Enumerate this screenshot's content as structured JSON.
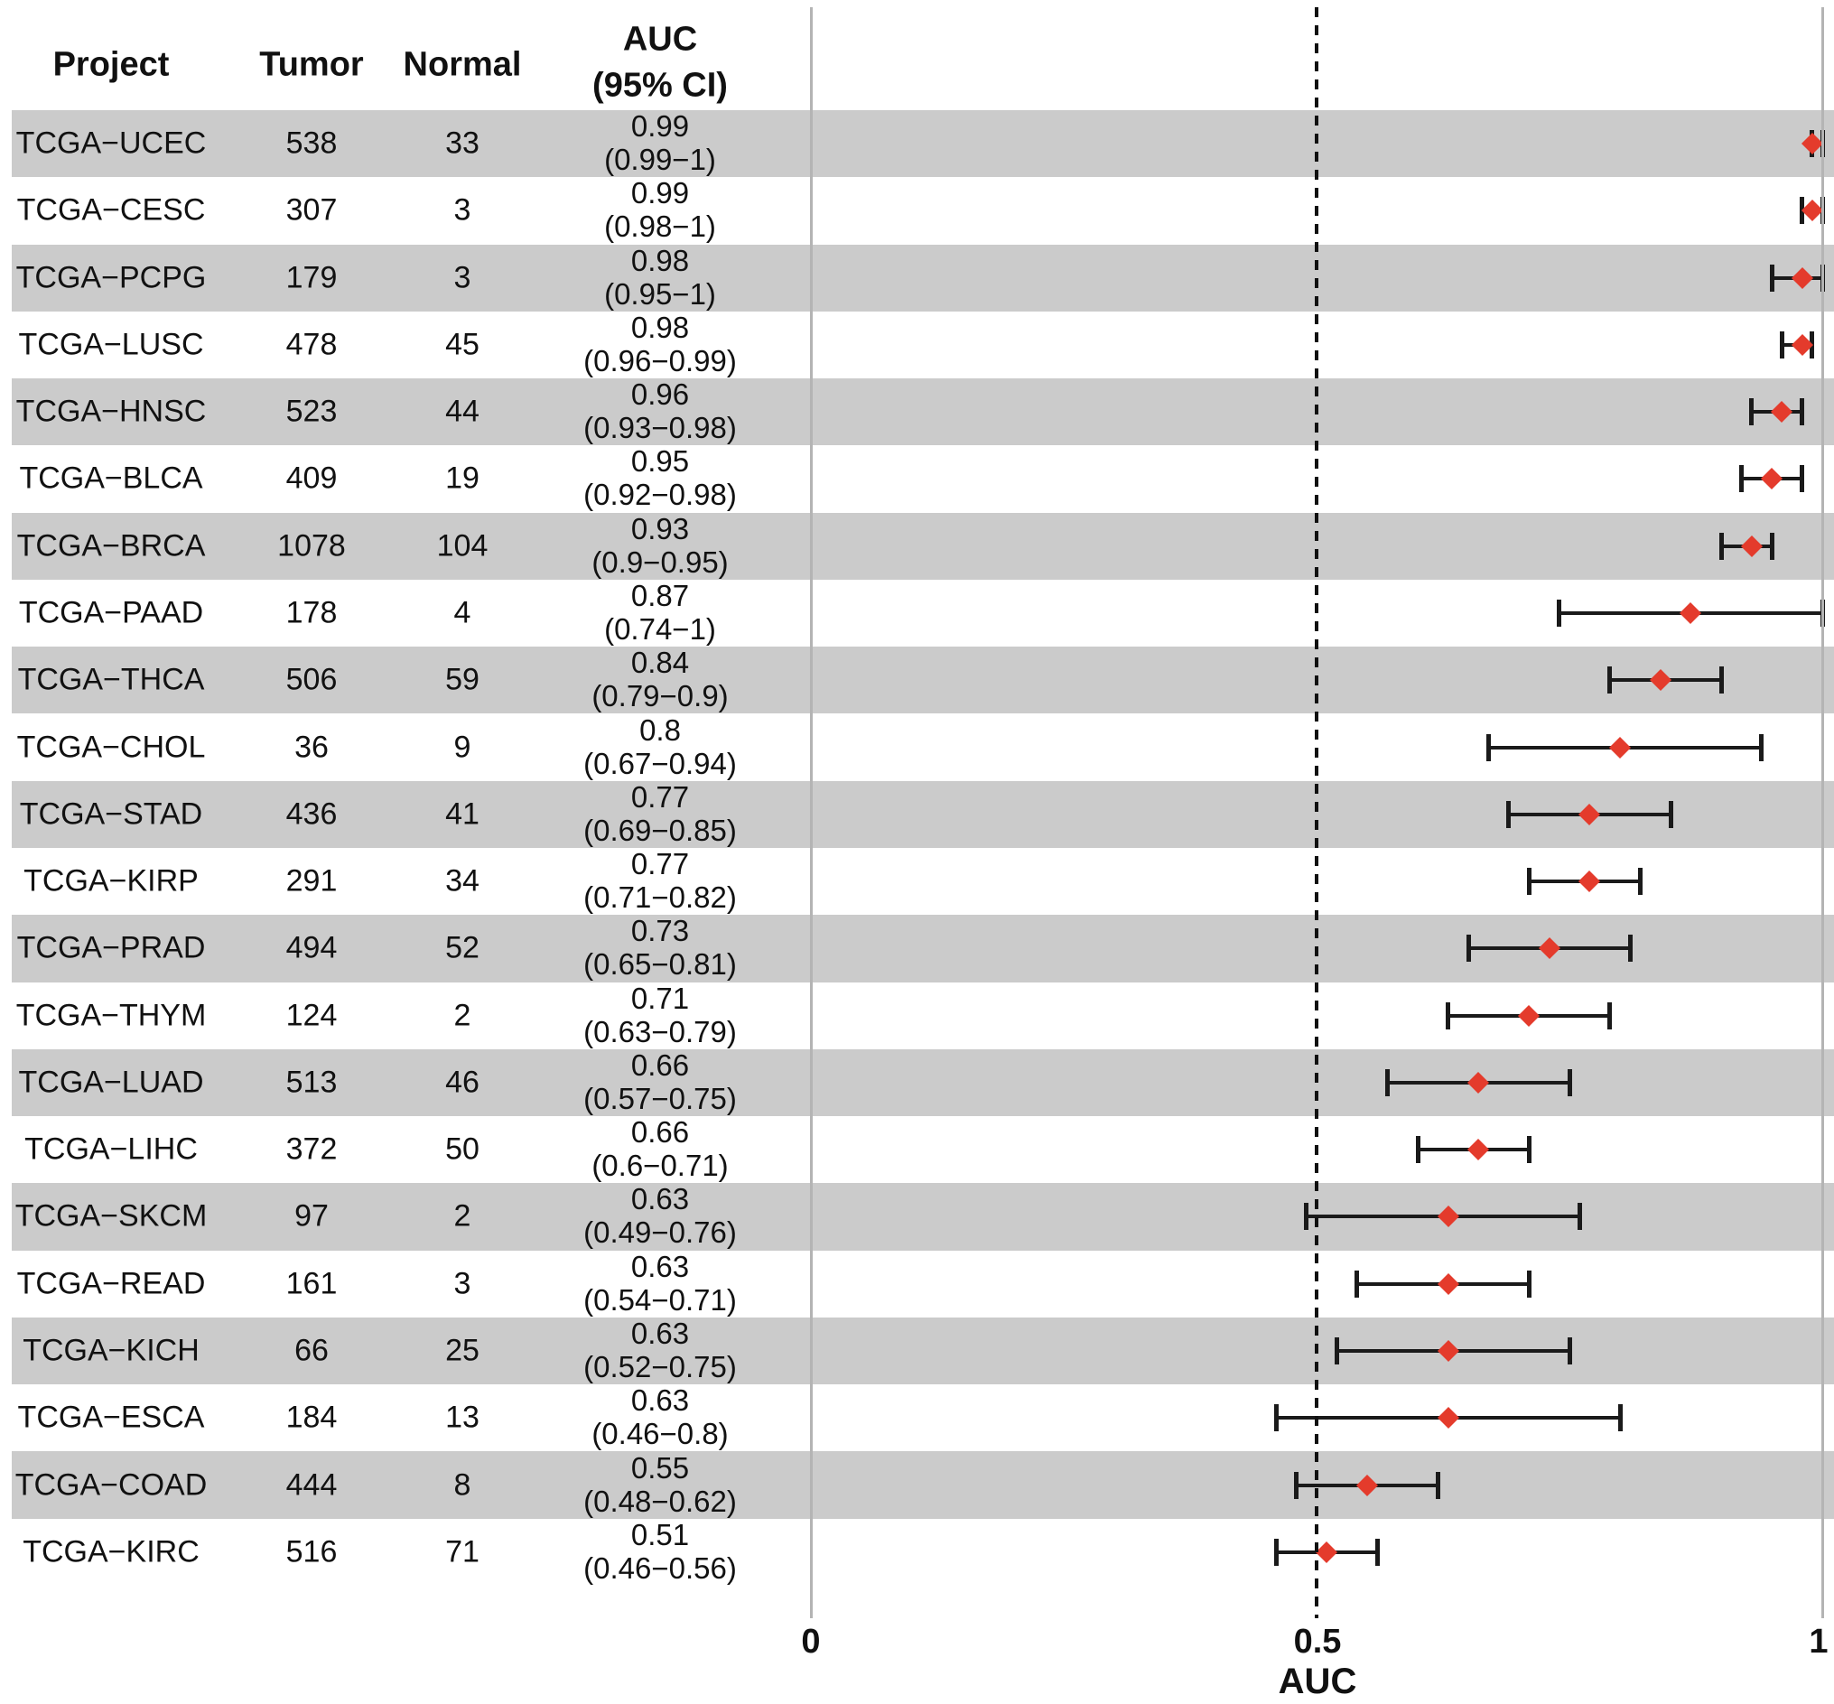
{
  "header": {
    "project": "Project",
    "tumor": "Tumor",
    "normal": "Normal",
    "auc": "AUC\n(95% CI)"
  },
  "axis": {
    "tick_0": "0",
    "tick_05": "0.5",
    "tick_1": "1",
    "title": "AUC"
  },
  "colors": {
    "band": "#cbcbcb",
    "diamond": "#e43b2c",
    "errorbar": "#1a1a1a",
    "gridline": "#b4b4b4",
    "dashed_line": "#111111"
  },
  "chart_data": {
    "type": "scatter",
    "subtype": "forest-plot",
    "xlabel": "AUC",
    "xlim": [
      0,
      1
    ],
    "x_ticks": [
      0,
      0.5,
      1
    ],
    "reference_line_x": 0.5,
    "legend": "none",
    "grid": "vertical lines at 0 and 1, dashed reference at 0.5",
    "columns": [
      "Project",
      "Tumor",
      "Normal",
      "AUC (95% CI)"
    ],
    "rows": [
      {
        "project": "TCGA−UCEC",
        "tumor": "538",
        "normal": "33",
        "auc": 0.99,
        "ci_lo": 0.99,
        "ci_hi": 1,
        "auc_label": "0.99",
        "ci_label": "(0.99−1)"
      },
      {
        "project": "TCGA−CESC",
        "tumor": "307",
        "normal": "3",
        "auc": 0.99,
        "ci_lo": 0.98,
        "ci_hi": 1,
        "auc_label": "0.99",
        "ci_label": "(0.98−1)"
      },
      {
        "project": "TCGA−PCPG",
        "tumor": "179",
        "normal": "3",
        "auc": 0.98,
        "ci_lo": 0.95,
        "ci_hi": 1,
        "auc_label": "0.98",
        "ci_label": "(0.95−1)"
      },
      {
        "project": "TCGA−LUSC",
        "tumor": "478",
        "normal": "45",
        "auc": 0.98,
        "ci_lo": 0.96,
        "ci_hi": 0.99,
        "auc_label": "0.98",
        "ci_label": "(0.96−0.99)"
      },
      {
        "project": "TCGA−HNSC",
        "tumor": "523",
        "normal": "44",
        "auc": 0.96,
        "ci_lo": 0.93,
        "ci_hi": 0.98,
        "auc_label": "0.96",
        "ci_label": "(0.93−0.98)"
      },
      {
        "project": "TCGA−BLCA",
        "tumor": "409",
        "normal": "19",
        "auc": 0.95,
        "ci_lo": 0.92,
        "ci_hi": 0.98,
        "auc_label": "0.95",
        "ci_label": "(0.92−0.98)"
      },
      {
        "project": "TCGA−BRCA",
        "tumor": "1078",
        "normal": "104",
        "auc": 0.93,
        "ci_lo": 0.9,
        "ci_hi": 0.95,
        "auc_label": "0.93",
        "ci_label": "(0.9−0.95)"
      },
      {
        "project": "TCGA−PAAD",
        "tumor": "178",
        "normal": "4",
        "auc": 0.87,
        "ci_lo": 0.74,
        "ci_hi": 1,
        "auc_label": "0.87",
        "ci_label": "(0.74−1)"
      },
      {
        "project": "TCGA−THCA",
        "tumor": "506",
        "normal": "59",
        "auc": 0.84,
        "ci_lo": 0.79,
        "ci_hi": 0.9,
        "auc_label": "0.84",
        "ci_label": "(0.79−0.9)"
      },
      {
        "project": "TCGA−CHOL",
        "tumor": "36",
        "normal": "9",
        "auc": 0.8,
        "ci_lo": 0.67,
        "ci_hi": 0.94,
        "auc_label": "0.8",
        "ci_label": "(0.67−0.94)"
      },
      {
        "project": "TCGA−STAD",
        "tumor": "436",
        "normal": "41",
        "auc": 0.77,
        "ci_lo": 0.69,
        "ci_hi": 0.85,
        "auc_label": "0.77",
        "ci_label": "(0.69−0.85)"
      },
      {
        "project": "TCGA−KIRP",
        "tumor": "291",
        "normal": "34",
        "auc": 0.77,
        "ci_lo": 0.71,
        "ci_hi": 0.82,
        "auc_label": "0.77",
        "ci_label": "(0.71−0.82)"
      },
      {
        "project": "TCGA−PRAD",
        "tumor": "494",
        "normal": "52",
        "auc": 0.73,
        "ci_lo": 0.65,
        "ci_hi": 0.81,
        "auc_label": "0.73",
        "ci_label": "(0.65−0.81)"
      },
      {
        "project": "TCGA−THYM",
        "tumor": "124",
        "normal": "2",
        "auc": 0.71,
        "ci_lo": 0.63,
        "ci_hi": 0.79,
        "auc_label": "0.71",
        "ci_label": "(0.63−0.79)"
      },
      {
        "project": "TCGA−LUAD",
        "tumor": "513",
        "normal": "46",
        "auc": 0.66,
        "ci_lo": 0.57,
        "ci_hi": 0.75,
        "auc_label": "0.66",
        "ci_label": "(0.57−0.75)"
      },
      {
        "project": "TCGA−LIHC",
        "tumor": "372",
        "normal": "50",
        "auc": 0.66,
        "ci_lo": 0.6,
        "ci_hi": 0.71,
        "auc_label": "0.66",
        "ci_label": "(0.6−0.71)"
      },
      {
        "project": "TCGA−SKCM",
        "tumor": "97",
        "normal": "2",
        "auc": 0.63,
        "ci_lo": 0.49,
        "ci_hi": 0.76,
        "auc_label": "0.63",
        "ci_label": "(0.49−0.76)"
      },
      {
        "project": "TCGA−READ",
        "tumor": "161",
        "normal": "3",
        "auc": 0.63,
        "ci_lo": 0.54,
        "ci_hi": 0.71,
        "auc_label": "0.63",
        "ci_label": "(0.54−0.71)"
      },
      {
        "project": "TCGA−KICH",
        "tumor": "66",
        "normal": "25",
        "auc": 0.63,
        "ci_lo": 0.52,
        "ci_hi": 0.75,
        "auc_label": "0.63",
        "ci_label": "(0.52−0.75)"
      },
      {
        "project": "TCGA−ESCA",
        "tumor": "184",
        "normal": "13",
        "auc": 0.63,
        "ci_lo": 0.46,
        "ci_hi": 0.8,
        "auc_label": "0.63",
        "ci_label": "(0.46−0.8)"
      },
      {
        "project": "TCGA−COAD",
        "tumor": "444",
        "normal": "8",
        "auc": 0.55,
        "ci_lo": 0.48,
        "ci_hi": 0.62,
        "auc_label": "0.55",
        "ci_label": "(0.48−0.62)"
      },
      {
        "project": "TCGA−KIRC",
        "tumor": "516",
        "normal": "71",
        "auc": 0.51,
        "ci_lo": 0.46,
        "ci_hi": 0.56,
        "auc_label": "0.51",
        "ci_label": "(0.46−0.56)"
      }
    ]
  }
}
